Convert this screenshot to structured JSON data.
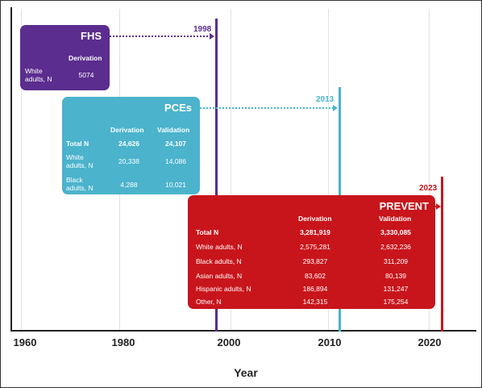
{
  "axis": {
    "ticks": [
      "1960",
      "1980",
      "2000",
      "2010",
      "2020"
    ],
    "title": "Year"
  },
  "fhs": {
    "title": "FHS",
    "year": "1998",
    "header": "Derivation",
    "row_label": "White adults, N",
    "value": "5074",
    "color": "#5b2d8e"
  },
  "pces": {
    "title": "PCEs",
    "year": "2013",
    "headers": [
      "Derivation",
      "Validation"
    ],
    "rows": [
      {
        "label": "Total N",
        "derivation": "24,626",
        "validation": "24,107"
      },
      {
        "label": "White adults, N",
        "derivation": "20,338",
        "validation": "14,086"
      },
      {
        "label": "Black adults, N",
        "derivation": "4,288",
        "validation": "10,021"
      }
    ],
    "color": "#4bb3cc"
  },
  "prevent": {
    "title": "PREVENT",
    "year": "2023",
    "headers": [
      "Derivation",
      "Validation"
    ],
    "rows": [
      {
        "label": "Total N",
        "derivation": "3,281,919",
        "validation": "3,330,085"
      },
      {
        "label": "White adults, N",
        "derivation": "2,575,281",
        "validation": "2,632,236"
      },
      {
        "label": "Black adults, N",
        "derivation": "293,827",
        "validation": "311,209"
      },
      {
        "label": "Asian adults, N",
        "derivation": "83,602",
        "validation": "80,139"
      },
      {
        "label": "Hispanic adults, N",
        "derivation": "186,894",
        "validation": "131,247"
      },
      {
        "label": "Other, N",
        "derivation": "142,315",
        "validation": "175,254"
      }
    ],
    "color": "#c8151b"
  }
}
